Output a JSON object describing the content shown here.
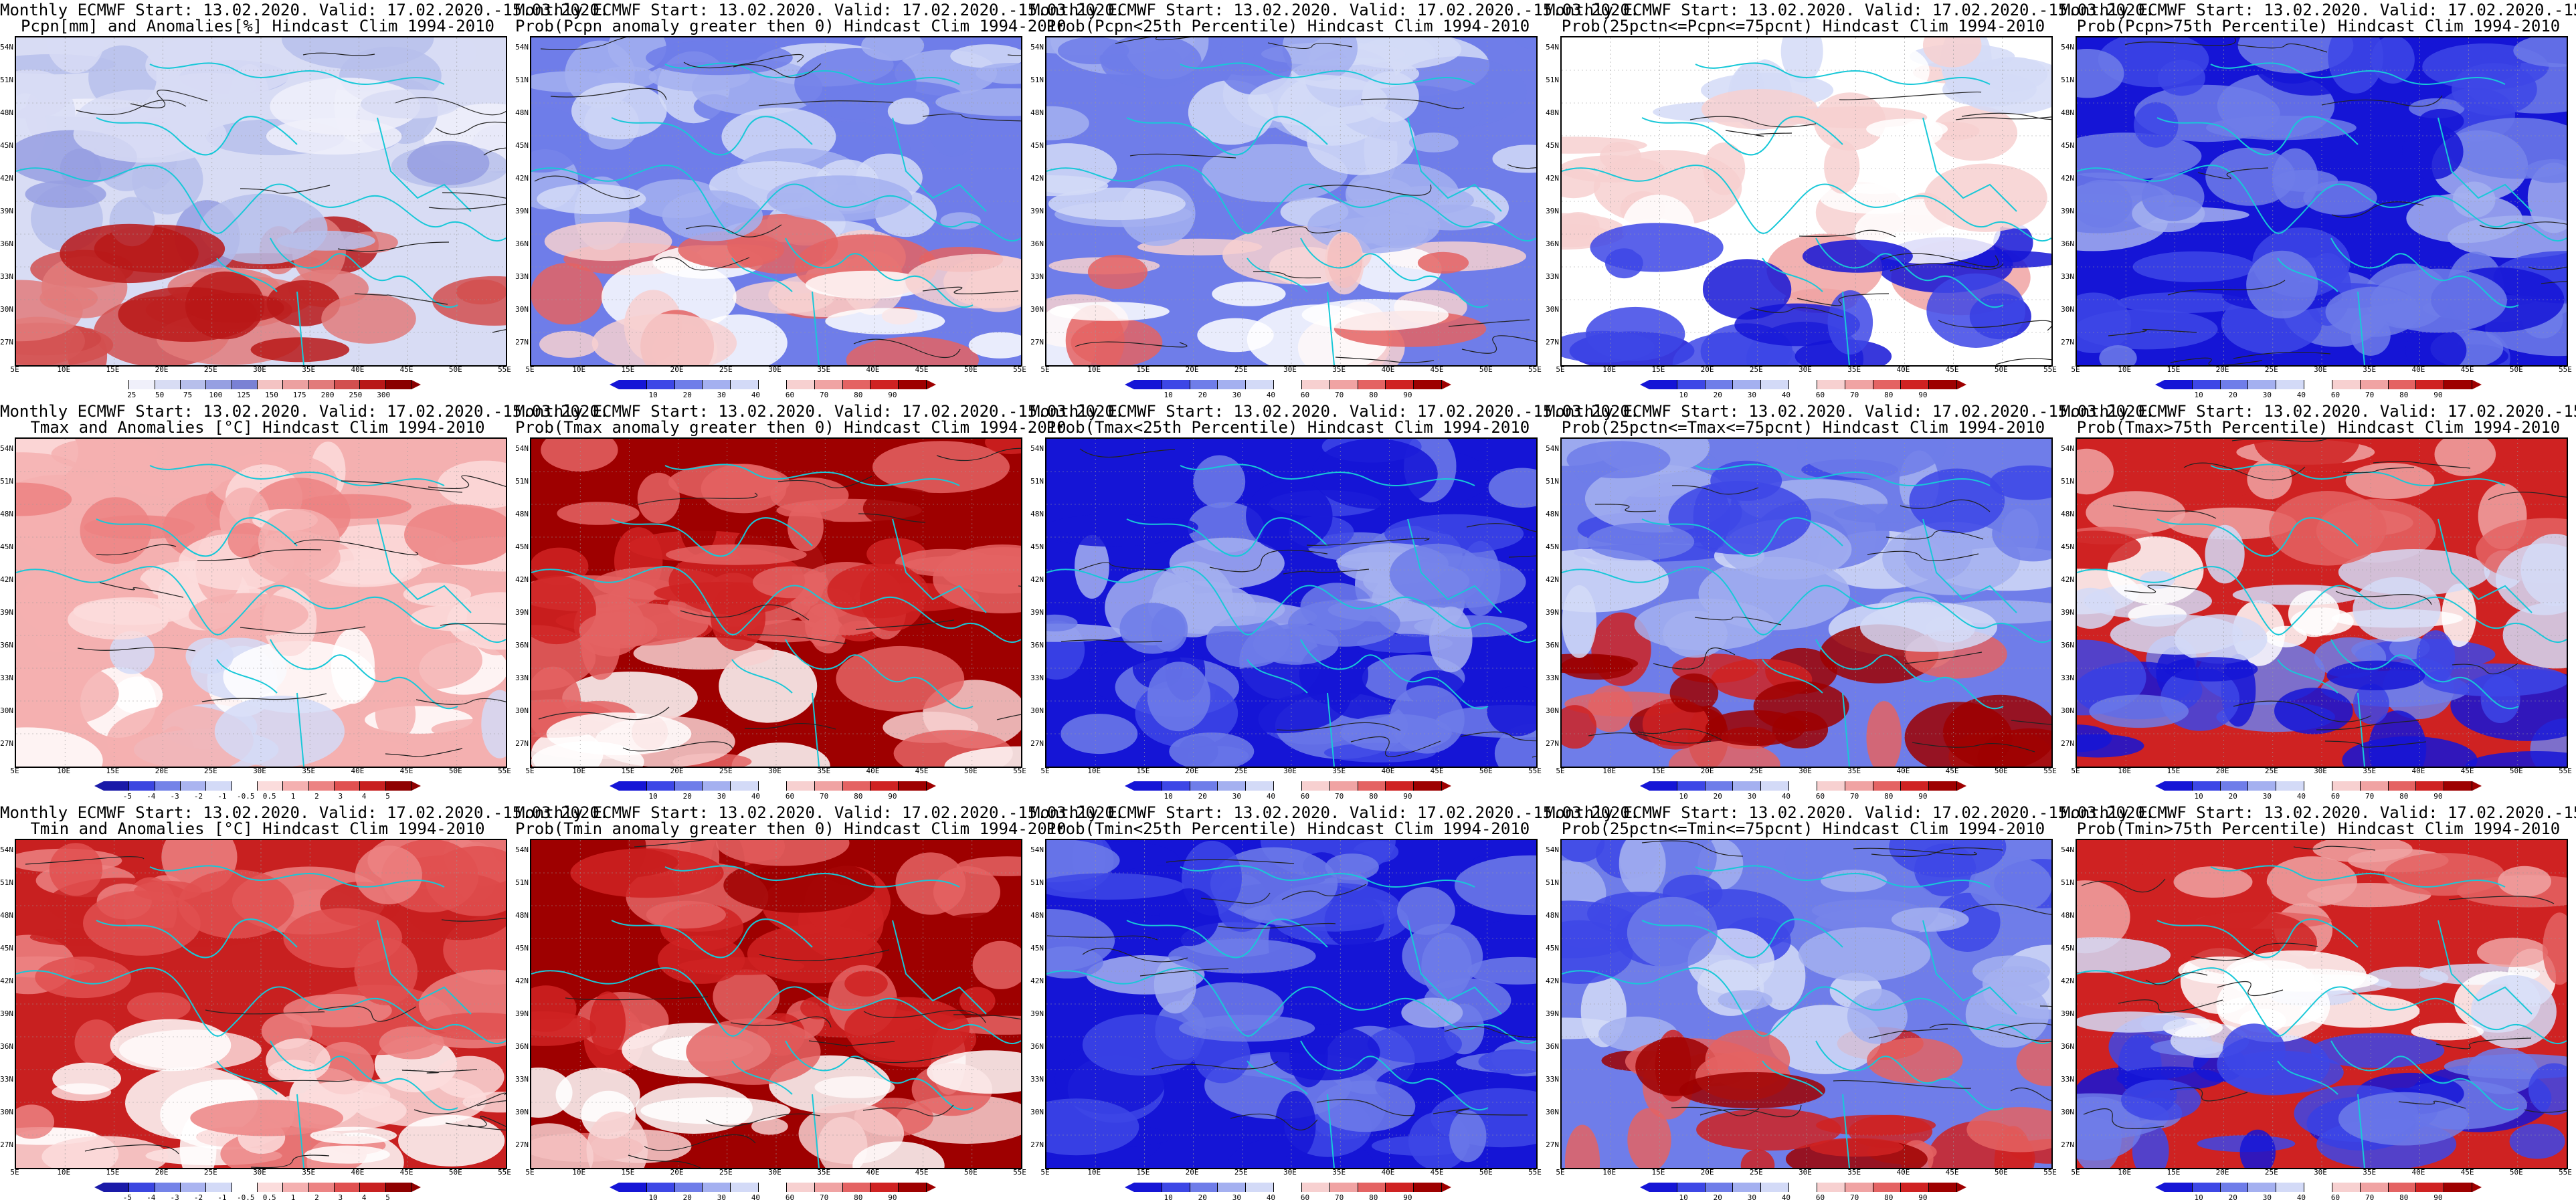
{
  "header_line": "Monthly ECMWF Start: 13.02.2020. Valid: 17.02.2020.-15.03.2020.",
  "lat_ticks": [
    "54N",
    "51N",
    "48N",
    "45N",
    "42N",
    "39N",
    "36N",
    "33N",
    "30N",
    "27N"
  ],
  "lon_ticks": [
    "5E",
    "10E",
    "15E",
    "20E",
    "25E",
    "30E",
    "35E",
    "40E",
    "45E",
    "50E",
    "55E"
  ],
  "palettes": {
    "anom_precip": [
      "#ffffff",
      "#f0f0fa",
      "#d8dcf4",
      "#b7bfeb",
      "#969fe2",
      "#7a81d4",
      "#f4c3c3",
      "#eca0a0",
      "#e27b7b",
      "#d24f4f",
      "#b81818",
      "#8a0000"
    ],
    "prob": [
      "#1515d6",
      "#3d47e6",
      "#6f7de9",
      "#a4b0f0",
      "#d3daf7",
      "#ffffff",
      "#f7d0d0",
      "#f0a3a3",
      "#e46363",
      "#cf2222",
      "#9e0000"
    ],
    "temp_anom": [
      "#1a1aa8",
      "#3b46e0",
      "#7483e8",
      "#aab4f0",
      "#d3daf7",
      "#ffffff",
      "#fbdcdc",
      "#f4b0b0",
      "#ec8383",
      "#e05050",
      "#c82020",
      "#8f0000"
    ]
  },
  "panels": [
    {
      "id": "p1",
      "line2": "Pcpn[mm] and Anomalies[%] Hindcast Clim 1994-2010",
      "palette": "anom_precip",
      "colorbar_labels": [
        "25",
        "50",
        "75",
        "100",
        "125",
        "150",
        "175",
        "200",
        "250",
        "300"
      ],
      "dominant": "mixed-blue-red"
    },
    {
      "id": "p2",
      "line2": "Prob(Pcpn anomaly greater then 0) Hindcast Clim 1994-2010",
      "palette": "prob",
      "colorbar_labels": [
        "10",
        "20",
        "30",
        "40",
        "60",
        "70",
        "80",
        "90"
      ],
      "dominant": "blue"
    },
    {
      "id": "p3",
      "line2": "Prob(Pcpn<25th Percentile) Hindcast Clim 1994-2010",
      "palette": "prob",
      "colorbar_labels": [
        "10",
        "20",
        "30",
        "40",
        "60",
        "70",
        "80",
        "90"
      ],
      "dominant": "blue"
    },
    {
      "id": "p4",
      "line2": "Prob(25pctn<=Pcpn<=75pcnt) Hindcast Clim 1994-2010",
      "palette": "prob",
      "colorbar_labels": [
        "10",
        "20",
        "30",
        "40",
        "60",
        "70",
        "80",
        "90"
      ],
      "dominant": "white"
    },
    {
      "id": "p5",
      "line2": "Prob(Pcpn>75th Percentile) Hindcast Clim 1994-2010",
      "palette": "prob",
      "colorbar_labels": [
        "10",
        "20",
        "30",
        "40",
        "60",
        "70",
        "80",
        "90"
      ],
      "dominant": "dark-blue"
    },
    {
      "id": "p6",
      "line2": "Tmax and Anomalies [°C] Hindcast Clim 1994-2010",
      "palette": "temp_anom",
      "colorbar_labels": [
        "-5",
        "-4",
        "-3",
        "-2",
        "-1",
        "-0.5",
        "0.5",
        "1",
        "2",
        "3",
        "4",
        "5"
      ],
      "dominant": "light-red"
    },
    {
      "id": "p7",
      "line2": "Prob(Tmax anomaly greater then 0) Hindcast Clim 1994-2010",
      "palette": "prob",
      "colorbar_labels": [
        "10",
        "20",
        "30",
        "40",
        "60",
        "70",
        "80",
        "90"
      ],
      "dominant": "red"
    },
    {
      "id": "p8",
      "line2": "Prob(Tmax<25th Percentile) Hindcast Clim 1994-2010",
      "palette": "prob",
      "colorbar_labels": [
        "10",
        "20",
        "30",
        "40",
        "60",
        "70",
        "80",
        "90"
      ],
      "dominant": "dark-blue"
    },
    {
      "id": "p9",
      "line2": "Prob(25pctn<=Tmax<=75pcnt) Hindcast Clim 1994-2010",
      "palette": "prob",
      "colorbar_labels": [
        "10",
        "20",
        "30",
        "40",
        "60",
        "70",
        "80",
        "90"
      ],
      "dominant": "mixed-blue-red"
    },
    {
      "id": "p10",
      "line2": "Prob(Tmax>75th Percentile) Hindcast Clim 1994-2010",
      "palette": "prob",
      "colorbar_labels": [
        "10",
        "20",
        "30",
        "40",
        "60",
        "70",
        "80",
        "90"
      ],
      "dominant": "red-blue"
    },
    {
      "id": "p11",
      "line2": "Tmin and Anomalies [°C] Hindcast Clim 1994-2010",
      "palette": "temp_anom",
      "colorbar_labels": [
        "-5",
        "-4",
        "-3",
        "-2",
        "-1",
        "-0.5",
        "0.5",
        "1",
        "2",
        "3",
        "4",
        "5"
      ],
      "dominant": "red"
    },
    {
      "id": "p12",
      "line2": "Prob(Tmin anomaly greater then 0) Hindcast Clim 1994-2010",
      "palette": "prob",
      "colorbar_labels": [
        "10",
        "20",
        "30",
        "40",
        "60",
        "70",
        "80",
        "90"
      ],
      "dominant": "red"
    },
    {
      "id": "p13",
      "line2": "Prob(Tmin<25th Percentile) Hindcast Clim 1994-2010",
      "palette": "prob",
      "colorbar_labels": [
        "10",
        "20",
        "30",
        "40",
        "60",
        "70",
        "80",
        "90"
      ],
      "dominant": "dark-blue"
    },
    {
      "id": "p14",
      "line2": "Prob(25pctn<=Tmin<=75pcnt) Hindcast Clim 1994-2010",
      "palette": "prob",
      "colorbar_labels": [
        "10",
        "20",
        "30",
        "40",
        "60",
        "70",
        "80",
        "90"
      ],
      "dominant": "mixed-blue-red"
    },
    {
      "id": "p15",
      "line2": "Prob(Tmin>75th Percentile) Hindcast Clim 1994-2010",
      "palette": "prob",
      "colorbar_labels": [
        "10",
        "20",
        "30",
        "40",
        "60",
        "70",
        "80",
        "90"
      ],
      "dominant": "red-blue"
    }
  ]
}
